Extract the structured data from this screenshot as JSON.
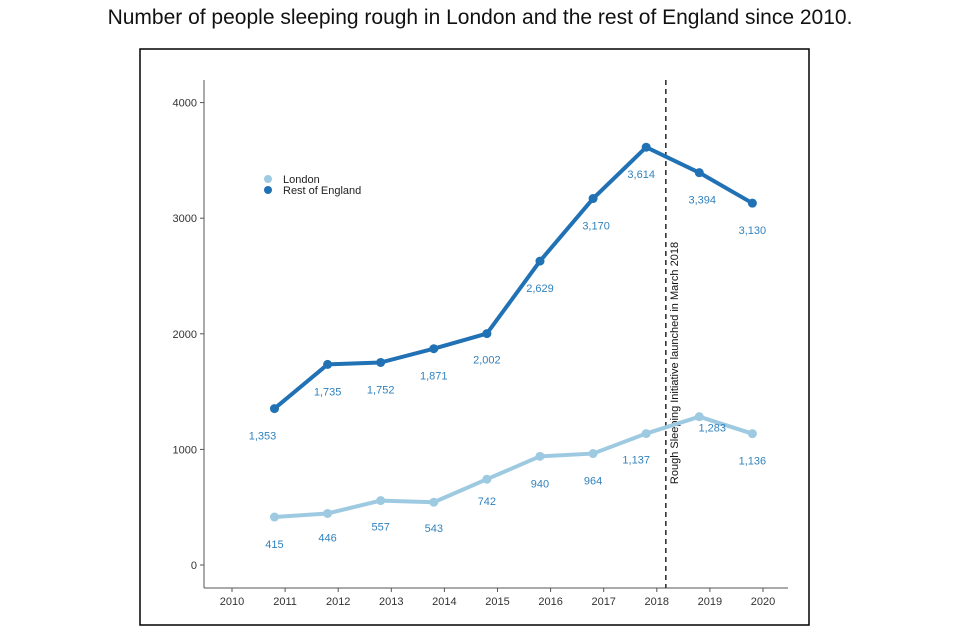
{
  "chart_data": {
    "type": "line",
    "title": "Number of people sleeping rough in London and the rest of England since 2010.",
    "x": [
      2010.8,
      2011.8,
      2012.8,
      2013.8,
      2014.8,
      2015.8,
      2016.8,
      2017.8,
      2018.8,
      2019.8
    ],
    "x_ticks": [
      "2010",
      "2011",
      "2012",
      "2013",
      "2014",
      "2015",
      "2016",
      "2017",
      "2018",
      "2019",
      "2020"
    ],
    "y_ticks": [
      "0",
      "1000",
      "2000",
      "3000",
      "4000"
    ],
    "xlim": [
      2010,
      2020
    ],
    "ylim": [
      0,
      4000
    ],
    "grid": false,
    "legend_position": "top-left",
    "series": [
      {
        "name": "London",
        "color": "#9ecae1",
        "values": [
          415,
          446,
          557,
          543,
          742,
          940,
          964,
          1137,
          1283,
          1136
        ],
        "labels": [
          "415",
          "446",
          "557",
          "543",
          "742",
          "940",
          "964",
          "1,137",
          "1,283",
          "1,136"
        ]
      },
      {
        "name": "Rest of England",
        "color": "#2171b5",
        "values": [
          1353,
          1735,
          1752,
          1871,
          2002,
          2629,
          3170,
          3614,
          3394,
          3130
        ],
        "labels": [
          "1,353",
          "1,735",
          "1,752",
          "1,871",
          "2,002",
          "2,629",
          "3,170",
          "3,614",
          "3,394",
          "3,130"
        ]
      }
    ],
    "annotations": [
      {
        "x": 2018.17,
        "style": "dashed-vertical",
        "text": "Rough Sleeping Initiative launched in March 2018"
      }
    ],
    "label_color": "#3182bd"
  }
}
